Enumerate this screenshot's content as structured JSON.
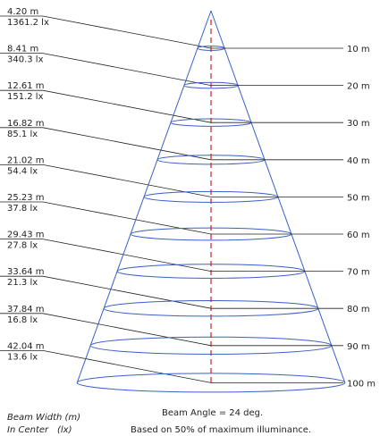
{
  "diagram": {
    "rows": [
      {
        "width": "4.20 m",
        "lux": "1361.2  lx",
        "distance": "10 m"
      },
      {
        "width": "8.41 m",
        "lux": "340.3  lx",
        "distance": "20 m"
      },
      {
        "width": "12.61 m",
        "lux": "151.2  lx",
        "distance": "30 m"
      },
      {
        "width": "16.82 m",
        "lux": "85.1  lx",
        "distance": "40 m"
      },
      {
        "width": "21.02 m",
        "lux": "54.4  lx",
        "distance": "50 m"
      },
      {
        "width": "25.23 m",
        "lux": "37.8  lx",
        "distance": "60 m"
      },
      {
        "width": "29.43 m",
        "lux": "27.8  lx",
        "distance": "70 m"
      },
      {
        "width": "33.64 m",
        "lux": "21.3  lx",
        "distance": "80 m"
      },
      {
        "width": "37.84 m",
        "lux": "16.8  lx",
        "distance": "90 m"
      },
      {
        "width": "42.04 m",
        "lux": "13.6  lx",
        "distance": "100 m"
      }
    ],
    "beam_angle": "Beam Angle = 24 deg.",
    "note": "Based on 50% of maximum illuminance.",
    "legend_width": "Beam Width (m)",
    "legend_center_label": "In Center",
    "legend_center_unit": "(lx)",
    "colors": {
      "cone": "#3a5fc8",
      "axis": "#cc2222",
      "leader": "#222222",
      "text": "#222222"
    }
  }
}
